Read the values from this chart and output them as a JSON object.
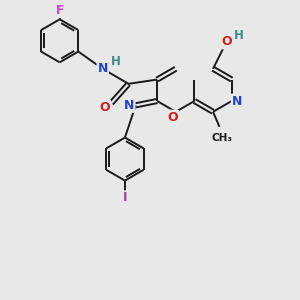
{
  "background_color": "#e8e8e8",
  "bond_color": "#1a1a1a",
  "atom_colors": {
    "F": "#cc44cc",
    "N": "#2244cc",
    "O": "#cc2222",
    "I": "#994499",
    "H": "#448888",
    "C": "#1a1a1a"
  },
  "figsize": [
    3.0,
    3.0
  ],
  "dpi": 100
}
